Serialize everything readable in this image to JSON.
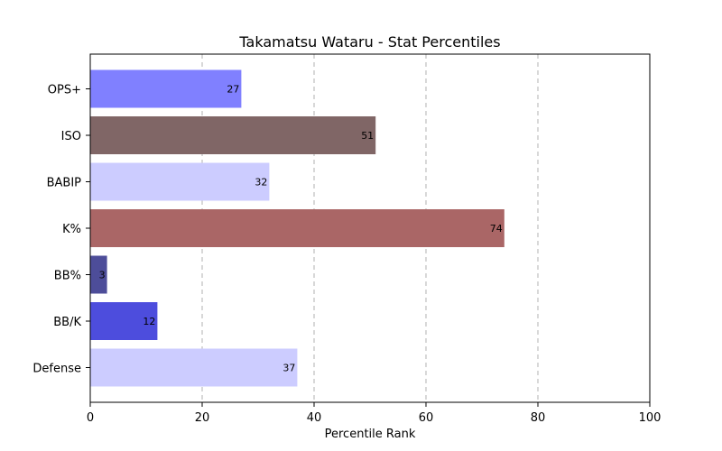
{
  "chart_data": {
    "type": "bar",
    "orientation": "horizontal",
    "title": "Takamatsu Wataru - Stat Percentiles",
    "xlabel": "Percentile Rank",
    "ylabel": "",
    "xlim": [
      0,
      100
    ],
    "xticks": [
      0,
      20,
      40,
      60,
      80,
      100
    ],
    "grid": "x-dashed",
    "categories": [
      "OPS+",
      "ISO",
      "BABIP",
      "K%",
      "BB%",
      "BB/K",
      "Defense"
    ],
    "values": [
      27,
      51,
      32,
      74,
      3,
      12,
      37
    ],
    "colors": [
      "#8080ff",
      "#806666",
      "#ccccff",
      "#aa6666",
      "#4d4d99",
      "#4d4ddd",
      "#ccccff"
    ]
  }
}
